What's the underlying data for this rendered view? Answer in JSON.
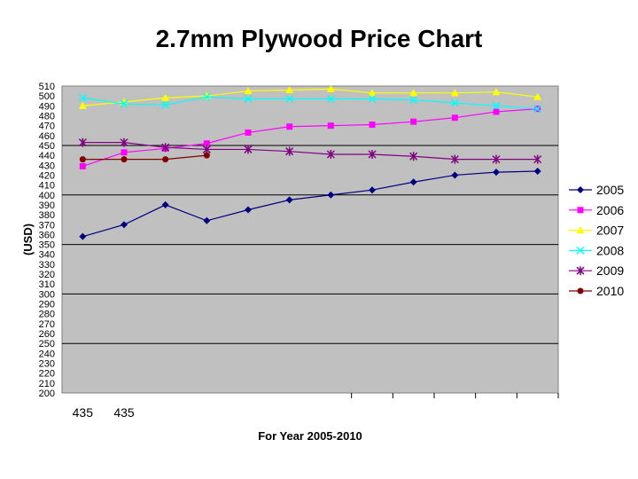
{
  "chart_data": {
    "type": "line",
    "title": "2.7mm Plywood Price Chart",
    "xlabel": "For Year 2005-2010",
    "ylabel": "(USD)",
    "ylim": [
      200,
      510
    ],
    "ytick_step": 10,
    "x_tick_labels": [
      "435",
      "435"
    ],
    "legend_position": "right",
    "grid": "horizontal major lines every 50",
    "plot_background": "#c0c0c0",
    "series": [
      {
        "name": "2005",
        "color": "#000080",
        "marker": "diamond",
        "values": [
          358,
          370,
          390,
          374,
          385,
          395,
          400,
          405,
          413,
          420,
          423,
          424
        ]
      },
      {
        "name": "2006",
        "color": "#ff00ff",
        "marker": "square",
        "values": [
          429,
          443,
          447,
          452,
          463,
          469,
          470,
          471,
          474,
          478,
          484,
          487
        ]
      },
      {
        "name": "2007",
        "color": "#ffff00",
        "marker": "triangle",
        "values": [
          490,
          494,
          498,
          500,
          505,
          506,
          507,
          503,
          503,
          503,
          504,
          499
        ]
      },
      {
        "name": "2008",
        "color": "#00ffff",
        "marker": "x",
        "values": [
          498,
          492,
          491,
          499,
          497,
          497,
          497,
          497,
          496,
          493,
          490,
          487
        ]
      },
      {
        "name": "2009",
        "color": "#800080",
        "marker": "asterisk",
        "values": [
          453,
          453,
          448,
          446,
          446,
          444,
          441,
          441,
          439,
          436,
          436,
          436
        ]
      },
      {
        "name": "2010",
        "color": "#800000",
        "marker": "circle",
        "values": [
          436,
          436,
          436,
          440
        ]
      }
    ]
  }
}
